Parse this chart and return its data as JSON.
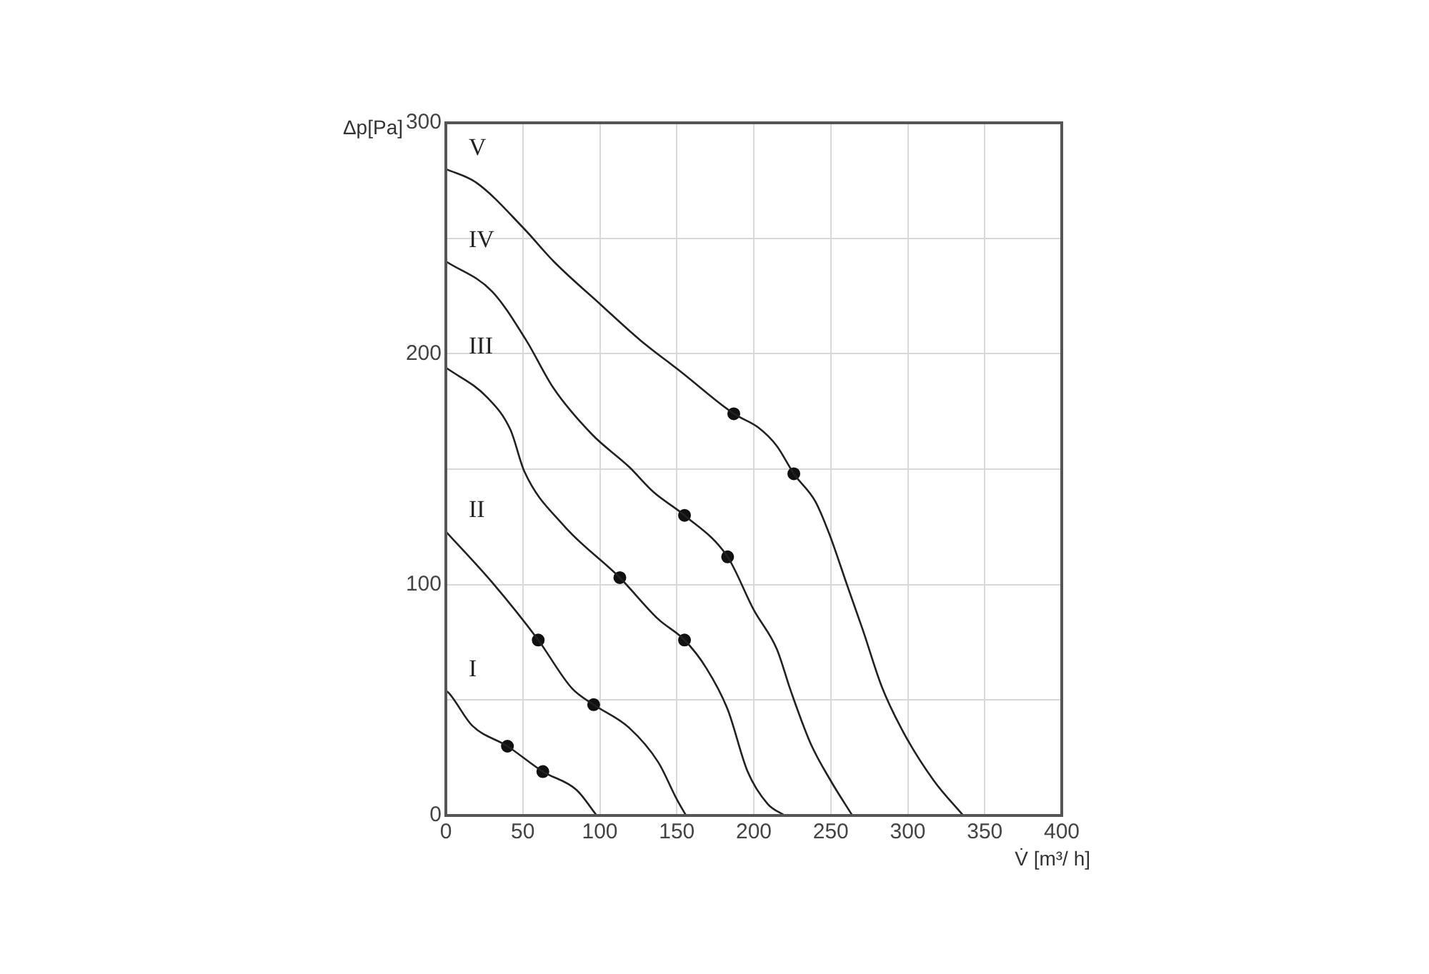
{
  "chart_data": {
    "type": "line",
    "xlabel": "V̇ [m³/ h]",
    "ylabel": "Δp[Pa]",
    "xlim": [
      0,
      400
    ],
    "ylim": [
      0,
      300
    ],
    "xticks": [
      0,
      50,
      100,
      150,
      200,
      250,
      300,
      350,
      400
    ],
    "yticks": [
      0,
      {
        "value": 50,
        "label": null
      },
      100,
      {
        "value": 150,
        "label": null
      },
      200,
      {
        "value": 250,
        "label": null
      },
      300
    ],
    "grid": true,
    "legend": false,
    "marker": "none",
    "line_style": "solid",
    "series": [
      {
        "name": "I",
        "color": "#222222",
        "x": [
          0,
          2,
          17,
          40,
          63,
          85,
          98
        ],
        "values": [
          54,
          53,
          39,
          30,
          19,
          11,
          0
        ]
      },
      {
        "name": "II",
        "color": "#222222",
        "x": [
          0,
          30,
          60,
          82,
          96,
          119,
          138,
          150,
          156
        ],
        "values": [
          123,
          101,
          76,
          55,
          48,
          38,
          23,
          7,
          0
        ]
      },
      {
        "name": "III",
        "color": "#222222",
        "x": [
          0,
          27,
          42,
          51,
          76,
          113,
          138,
          155,
          169,
          183,
          196,
          209,
          220
        ],
        "values": [
          194,
          181,
          167,
          149,
          126,
          103,
          85,
          76,
          64,
          46,
          19,
          5,
          0
        ]
      },
      {
        "name": "IV",
        "color": "#222222",
        "x": [
          0,
          30,
          52,
          70,
          95,
          119,
          135,
          155,
          183,
          200,
          215,
          224,
          237,
          250,
          264
        ],
        "values": [
          240,
          227,
          206,
          185,
          165,
          151,
          140,
          130,
          112,
          89,
          72,
          54,
          31,
          15,
          0
        ]
      },
      {
        "name": "V",
        "color": "#222222",
        "x": [
          0,
          20,
          51,
          70,
          101,
          126,
          153,
          187,
          203,
          215,
          226,
          240,
          249,
          261,
          271,
          283,
          298,
          317,
          336
        ],
        "values": [
          280,
          274,
          254,
          240,
          221,
          206,
          192,
          174,
          168,
          160,
          148,
          136,
          122,
          99,
          80,
          56,
          35,
          15,
          0
        ]
      },
      {
        "type": "scatter",
        "color": "#111111",
        "marker": "circle",
        "x": [
          40,
          63,
          60,
          96,
          113,
          155,
          155,
          183,
          187,
          226
        ],
        "values": [
          30,
          19,
          76,
          48,
          103,
          76,
          130,
          112,
          174,
          148
        ]
      }
    ]
  }
}
